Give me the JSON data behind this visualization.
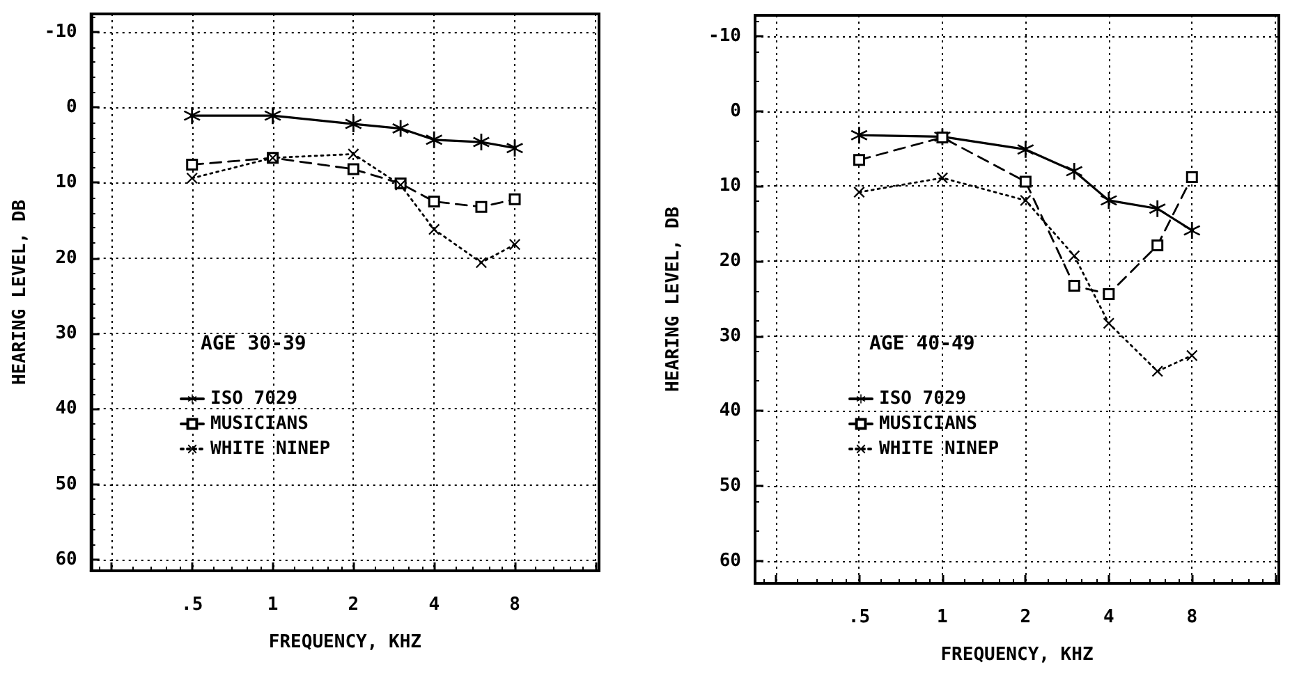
{
  "chart_data": [
    {
      "type": "line",
      "xlabel": "FREQUENCY, KHZ",
      "ylabel": "HEARING LEVEL, DB",
      "annotations": [
        "AGE 30-39"
      ],
      "x": [
        0.5,
        1,
        2,
        3,
        4,
        6,
        8
      ],
      "log": "x",
      "grid": true,
      "legend": "left",
      "xlim": [
        0.21,
        16.5
      ],
      "xticks": [
        {
          "value": 0.25,
          "label": null
        },
        {
          "value": 0.5,
          "label": ".5"
        },
        1,
        2,
        4,
        8,
        {
          "value": 16,
          "label": null
        }
      ],
      "ylim": [
        61.5,
        -12.4
      ],
      "yticks": [
        -10,
        0,
        10,
        20,
        30,
        40,
        50,
        60
      ],
      "series": [
        {
          "name": "ISO 7029",
          "color": "#000000",
          "marker": "star",
          "line_style": "solid",
          "values": [
            1.1,
            1.1,
            2.2,
            2.8,
            4.3,
            4.6,
            5.4
          ]
        },
        {
          "name": "MUSICIANS",
          "color": "#000000",
          "marker": "square",
          "line_style": "dashed",
          "values": [
            7.6,
            6.7,
            8.2,
            10.1,
            12.5,
            13.2,
            12.2
          ]
        },
        {
          "name": "WHITE NINEP",
          "color": "#000000",
          "marker": "cross",
          "line_style": "dotted",
          "values": [
            9.4,
            6.7,
            6.2,
            10.3,
            16.2,
            20.6,
            18.2
          ]
        }
      ]
    },
    {
      "type": "line",
      "xlabel": "FREQUENCY, KHZ",
      "ylabel": "HEARING LEVEL, DB",
      "annotations": [
        "AGE 40-49"
      ],
      "x": [
        0.5,
        1,
        2,
        3,
        4,
        6,
        8
      ],
      "log": "x",
      "grid": true,
      "legend": "left",
      "xlim": [
        0.21,
        16.5
      ],
      "xticks": [
        {
          "value": 0.25,
          "label": null
        },
        {
          "value": 0.5,
          "label": ".5"
        },
        1,
        2,
        4,
        8,
        {
          "value": 16,
          "label": null
        }
      ],
      "ylim": [
        63,
        -12.8
      ],
      "yticks": [
        -10,
        0,
        10,
        20,
        30,
        40,
        50,
        60
      ],
      "series": [
        {
          "name": "ISO 7029",
          "color": "#000000",
          "marker": "star",
          "line_style": "solid",
          "values": [
            3.2,
            3.4,
            5.1,
            8.0,
            11.9,
            13.0,
            15.9
          ]
        },
        {
          "name": "MUSICIANS",
          "color": "#000000",
          "marker": "square",
          "line_style": "dashed",
          "values": [
            6.5,
            3.5,
            9.4,
            23.3,
            24.4,
            17.9,
            8.8
          ]
        },
        {
          "name": "WHITE NINEP",
          "color": "#000000",
          "marker": "cross",
          "line_style": "dotted",
          "values": [
            10.8,
            8.9,
            11.9,
            19.3,
            28.3,
            34.7,
            32.6
          ]
        }
      ]
    }
  ]
}
